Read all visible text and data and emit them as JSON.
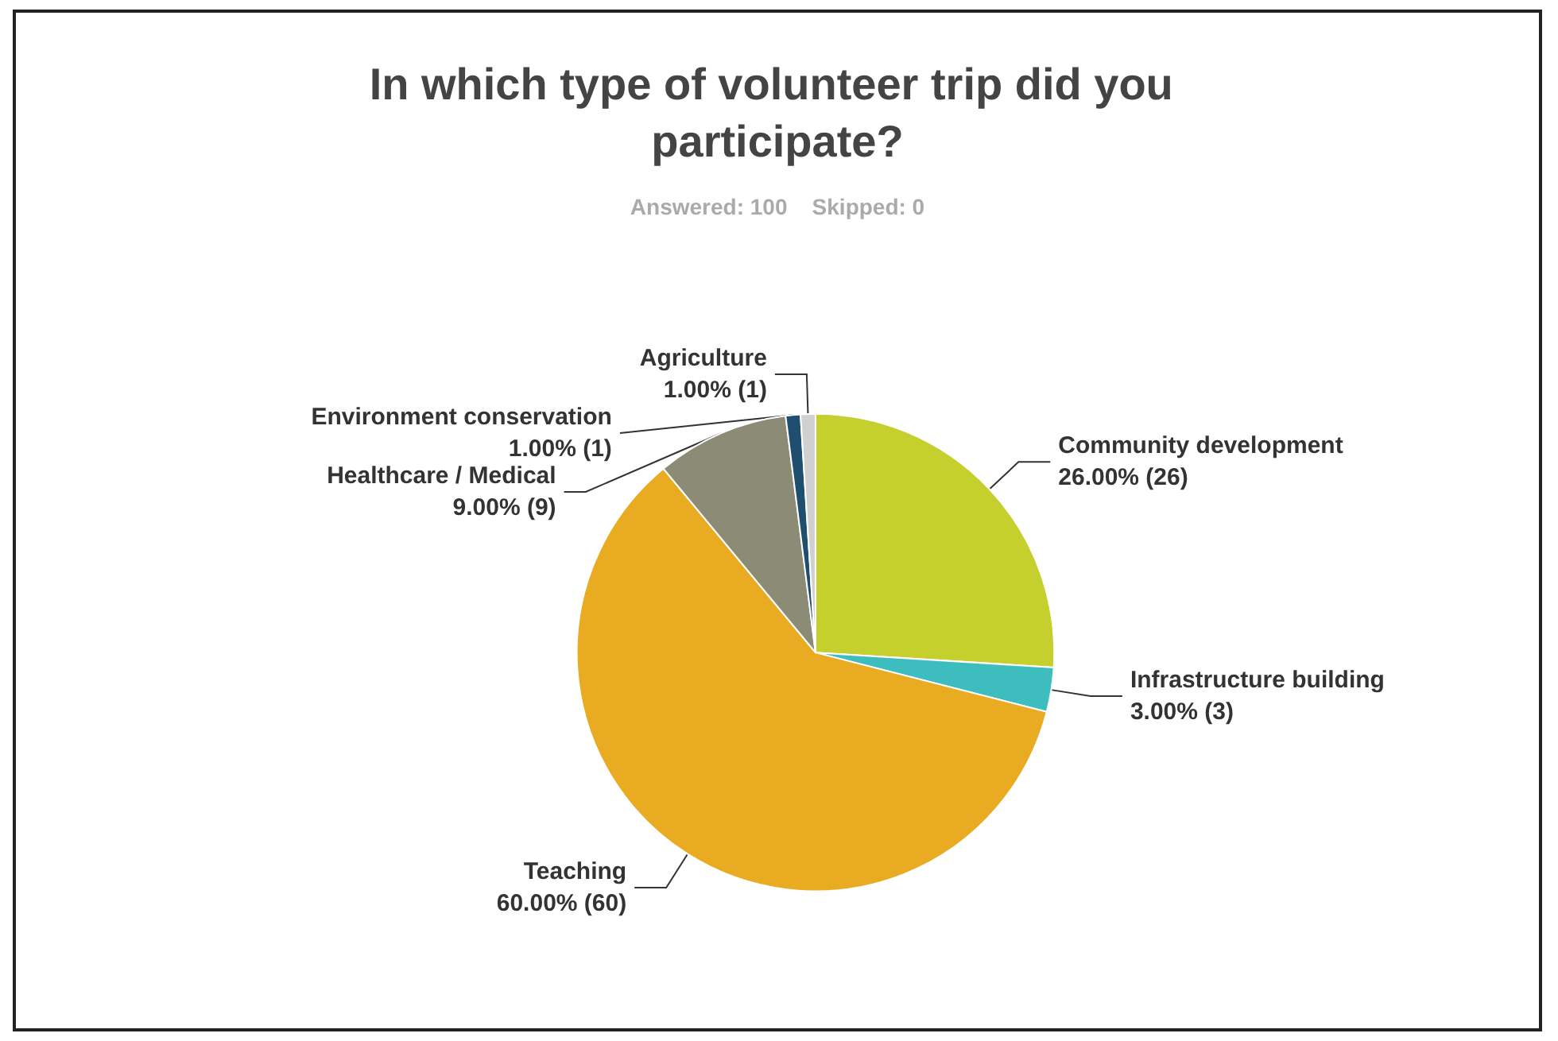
{
  "chart_data": {
    "type": "pie",
    "title": "In which type of volunteer trip did you participate?",
    "subtitle": "Answered: 100    Skipped: 0",
    "categories": [
      "Community development",
      "Infrastructure building",
      "Teaching",
      "Healthcare / Medical",
      "Environment conservation",
      "Agriculture"
    ],
    "values": [
      26,
      3,
      60,
      9,
      1,
      1
    ],
    "value_labels": [
      "26.00% (26)",
      "3.00% (3)",
      "60.00% (60)",
      "9.00% (9)",
      "1.00% (1)",
      "1.00% (1)"
    ],
    "colors": [
      "#c5cf2e",
      "#3dbdbd",
      "#e8ab22",
      "#8b8b76",
      "#1f4e6e",
      "#d0d0d0"
    ],
    "legend": false
  }
}
